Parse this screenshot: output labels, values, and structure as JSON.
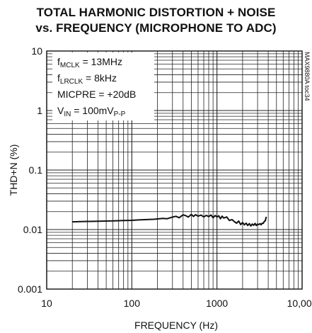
{
  "chart_data": {
    "type": "line",
    "title": "TOTAL HARMONIC DISTORTION + NOISE",
    "subtitle": "vs. FREQUENCY (MICROPHONE TO ADC)",
    "xlabel": "FREQUENCY (Hz)",
    "ylabel": "THD+N (%)",
    "x_scale": "log",
    "y_scale": "log",
    "xlim": [
      10,
      10000
    ],
    "ylim": [
      0.001,
      10
    ],
    "x_ticks": [
      "10",
      "100",
      "1000",
      "10,000"
    ],
    "y_ticks": [
      "10",
      "1",
      "0.1",
      "0.01",
      "0.001"
    ],
    "grid": true,
    "conditions": {
      "mclk": {
        "main": "f",
        "sub": "MCLK",
        "rest": " = 13MHz"
      },
      "lrclk": {
        "main": "f",
        "sub": "LRCLK",
        "rest": " = 8kHz"
      },
      "micpre": {
        "main": "MICPRE = +20dB",
        "sub": "",
        "rest": ""
      },
      "vin": {
        "main": "V",
        "sub": "IN",
        "rest": " = 100mV",
        "sub2": "P-P"
      }
    },
    "part_tag": "MAX9880A toc34",
    "series": [
      {
        "x": [
          20,
          25,
          30,
          40,
          50,
          60,
          70,
          80,
          100,
          120,
          150,
          180,
          200,
          230,
          260,
          300,
          330,
          360,
          400,
          430,
          460,
          500,
          530,
          560,
          600,
          650,
          700,
          750,
          800,
          850,
          900,
          950,
          1000,
          1050,
          1100,
          1150,
          1200,
          1300,
          1400,
          1500,
          1600,
          1700,
          1800,
          1900,
          2000,
          2100,
          2200,
          2300,
          2400,
          2500,
          2600,
          2700,
          2800,
          2900,
          3000,
          3100,
          3200,
          3300,
          3400,
          3500,
          3600,
          3700,
          3800
        ],
        "y": [
          0.0135,
          0.0136,
          0.0137,
          0.0138,
          0.0139,
          0.014,
          0.0141,
          0.0142,
          0.0143,
          0.0145,
          0.0147,
          0.0149,
          0.0151,
          0.0154,
          0.0152,
          0.0162,
          0.0167,
          0.0158,
          0.0177,
          0.0171,
          0.0162,
          0.018,
          0.0166,
          0.0178,
          0.0168,
          0.0175,
          0.0163,
          0.0173,
          0.0165,
          0.0176,
          0.0158,
          0.0172,
          0.0163,
          0.017,
          0.0152,
          0.0168,
          0.0156,
          0.0163,
          0.0142,
          0.0147,
          0.0136,
          0.0128,
          0.0139,
          0.0121,
          0.0131,
          0.012,
          0.0128,
          0.0117,
          0.0126,
          0.0115,
          0.0124,
          0.0118,
          0.0127,
          0.0117,
          0.0124,
          0.0121,
          0.0126,
          0.012,
          0.0128,
          0.0127,
          0.0137,
          0.0141,
          0.0164
        ]
      }
    ]
  }
}
